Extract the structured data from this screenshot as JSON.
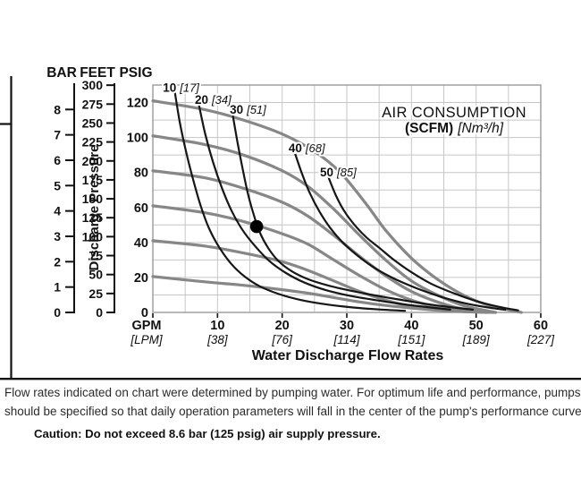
{
  "colors": {
    "text": "#111111",
    "grid": "#c6c6c6",
    "plot_border": "#9a9a9a",
    "water_curve": "#878787",
    "air_curve": "#161616",
    "operating_dot": "#000000",
    "figure_border": "#111111"
  },
  "figure": {
    "pressure_axis_header": {
      "bar": "BAR",
      "feet": "FEET",
      "psig": "PSIG"
    },
    "pressure_axis_label": "Discharge Pressure",
    "x_axis": {
      "unit_primary": "GPM",
      "unit_secondary": "[LPM]",
      "title": "Water Discharge Flow Rates"
    },
    "legend": {
      "line1": "AIR CONSUMPTION",
      "line2_bold": "(SCFM)",
      "line2_italic": "[Nm³/h]"
    }
  },
  "chart_data": {
    "type": "line",
    "title": "AIR CONSUMPTION (SCFM) [Nm³/h]",
    "xlabel": "Water Discharge Flow Rates",
    "x_units": [
      "GPM",
      "LPM"
    ],
    "y_units": [
      "BAR",
      "FEET",
      "PSIG"
    ],
    "xlim_gpm": [
      0,
      60
    ],
    "ylim_psig": [
      0,
      130
    ],
    "grid": {
      "x_step_gpm": 5,
      "y_step_psig": 10,
      "grid_on": true
    },
    "x_ticks": [
      {
        "gpm": "10",
        "lpm": "[38]"
      },
      {
        "gpm": "20",
        "lpm": "[76]"
      },
      {
        "gpm": "30",
        "lpm": "[114]"
      },
      {
        "gpm": "40",
        "lpm": "[151]"
      },
      {
        "gpm": "50",
        "lpm": "[189]"
      },
      {
        "gpm": "60",
        "lpm": "[227]"
      }
    ],
    "bar_ticks": [
      "0",
      "1",
      "2",
      "3",
      "4",
      "5",
      "6",
      "7",
      "8"
    ],
    "feet_ticks": [
      "0",
      "25",
      "50",
      "75",
      "100",
      "125",
      "150",
      "175",
      "200",
      "225",
      "250",
      "275",
      "300"
    ],
    "psig_ticks": [
      "0",
      "20",
      "40",
      "60",
      "80",
      "100",
      "120"
    ],
    "water_pressure_curves": [
      {
        "start_psig": 120,
        "points_gpm_psig": [
          [
            0,
            121
          ],
          [
            8,
            116
          ],
          [
            14,
            110
          ],
          [
            20,
            102
          ],
          [
            25,
            92
          ],
          [
            29,
            80
          ],
          [
            33,
            62
          ],
          [
            36,
            47
          ],
          [
            40,
            31
          ],
          [
            44,
            19
          ],
          [
            48,
            10
          ],
          [
            52,
            4
          ],
          [
            57,
            0
          ]
        ]
      },
      {
        "start_psig": 100,
        "points_gpm_psig": [
          [
            0,
            101
          ],
          [
            8,
            96
          ],
          [
            14,
            90
          ],
          [
            20,
            81
          ],
          [
            24,
            72
          ],
          [
            28,
            59
          ],
          [
            32,
            44
          ],
          [
            36,
            30
          ],
          [
            40,
            18
          ],
          [
            44,
            10
          ],
          [
            48,
            4
          ],
          [
            53,
            0
          ]
        ]
      },
      {
        "start_psig": 80,
        "points_gpm_psig": [
          [
            0,
            81
          ],
          [
            8,
            77
          ],
          [
            14,
            71
          ],
          [
            20,
            63
          ],
          [
            24,
            55
          ],
          [
            28,
            44
          ],
          [
            32,
            32
          ],
          [
            36,
            21
          ],
          [
            40,
            12
          ],
          [
            44,
            6
          ],
          [
            48,
            2
          ],
          [
            52.5,
            0
          ]
        ]
      },
      {
        "start_psig": 60,
        "points_gpm_psig": [
          [
            0,
            61
          ],
          [
            8,
            57
          ],
          [
            14,
            52
          ],
          [
            20,
            45
          ],
          [
            24,
            39
          ],
          [
            28,
            30
          ],
          [
            32,
            21
          ],
          [
            36,
            13
          ],
          [
            40,
            7
          ],
          [
            44,
            3
          ],
          [
            48,
            1
          ],
          [
            52,
            0
          ]
        ]
      },
      {
        "start_psig": 40,
        "points_gpm_psig": [
          [
            0,
            41
          ],
          [
            8,
            38
          ],
          [
            14,
            34
          ],
          [
            20,
            29
          ],
          [
            24,
            24
          ],
          [
            28,
            18
          ],
          [
            32,
            12
          ],
          [
            36,
            7
          ],
          [
            40,
            3.5
          ],
          [
            44,
            1.5
          ],
          [
            48,
            0.5
          ],
          [
            51.5,
            0
          ]
        ]
      },
      {
        "start_psig": 20,
        "points_gpm_psig": [
          [
            0,
            20.5
          ],
          [
            8,
            17.5
          ],
          [
            14,
            15.5
          ],
          [
            20,
            13
          ],
          [
            24,
            11
          ],
          [
            28,
            8.5
          ],
          [
            32,
            6
          ],
          [
            36,
            4
          ],
          [
            40,
            2.5
          ],
          [
            44,
            1.3
          ],
          [
            48,
            0.5
          ],
          [
            53,
            0
          ]
        ]
      }
    ],
    "air_consumption_curves": [
      {
        "scfm": "10",
        "nm3h": "[17]",
        "label_pos_gpm_psig": [
          1.55,
          128.3
        ],
        "points_gpm_psig": [
          [
            3.4,
            126
          ],
          [
            4.2,
            108
          ],
          [
            5.2,
            91
          ],
          [
            6.3,
            75
          ],
          [
            7.4,
            61
          ],
          [
            8.7,
            48
          ],
          [
            10.3,
            37
          ],
          [
            12.2,
            27.5
          ],
          [
            14.2,
            20.5
          ],
          [
            16.5,
            15
          ],
          [
            19.5,
            10.5
          ],
          [
            23,
            7
          ],
          [
            27,
            4.5
          ],
          [
            31,
            2.8
          ],
          [
            35,
            1.7
          ],
          [
            39,
            0.9
          ]
        ]
      },
      {
        "scfm": "20",
        "nm3h": "[34]",
        "label_pos_gpm_psig": [
          6.5,
          121.3
        ],
        "points_gpm_psig": [
          [
            7.1,
            119
          ],
          [
            8.1,
            102
          ],
          [
            9.3,
            86
          ],
          [
            10.7,
            71
          ],
          [
            12.2,
            58
          ],
          [
            13.9,
            47
          ],
          [
            15.8,
            38
          ],
          [
            18,
            29.5
          ],
          [
            20.6,
            22.5
          ],
          [
            23.5,
            17
          ],
          [
            27,
            12.5
          ],
          [
            30.5,
            9.5
          ],
          [
            34.5,
            7
          ],
          [
            38.5,
            4.8
          ],
          [
            42.5,
            3
          ],
          [
            46,
            1.6
          ]
        ]
      },
      {
        "scfm": "30",
        "nm3h": "[51]",
        "label_pos_gpm_psig": [
          11.9,
          115.7
        ],
        "points_gpm_psig": [
          [
            12.4,
            112
          ],
          [
            13.1,
            97
          ],
          [
            13.9,
            82
          ],
          [
            14.7,
            68
          ],
          [
            15.6,
            56
          ],
          [
            16.5,
            46
          ],
          [
            17.8,
            37
          ],
          [
            19.4,
            29.5
          ],
          [
            21.5,
            23.5
          ],
          [
            24,
            19
          ],
          [
            27,
            15.5
          ],
          [
            30.5,
            12.5
          ],
          [
            34,
            10
          ],
          [
            38,
            7.4
          ],
          [
            42,
            5
          ],
          [
            46,
            3
          ],
          [
            49.5,
            1.6
          ]
        ]
      },
      {
        "scfm": "40",
        "nm3h": "[68]",
        "label_pos_gpm_psig": [
          21.0,
          93.7
        ],
        "points_gpm_psig": [
          [
            21.8,
            93
          ],
          [
            23,
            80
          ],
          [
            24.3,
            68
          ],
          [
            25.8,
            57.5
          ],
          [
            27.5,
            48
          ],
          [
            29.5,
            39.5
          ],
          [
            32,
            31.5
          ],
          [
            34.5,
            25
          ],
          [
            37.5,
            19
          ],
          [
            41,
            13.5
          ],
          [
            44.5,
            9
          ],
          [
            48,
            5.5
          ],
          [
            51.5,
            3
          ],
          [
            54.5,
            1.5
          ]
        ]
      },
      {
        "scfm": "50",
        "nm3h": "[85]",
        "label_pos_gpm_psig": [
          25.85,
          79.8
        ],
        "points_gpm_psig": [
          [
            27.2,
            77
          ],
          [
            28.3,
            67
          ],
          [
            29.6,
            58
          ],
          [
            31.2,
            50
          ],
          [
            33,
            43
          ],
          [
            35,
            37
          ],
          [
            37.3,
            30
          ],
          [
            40,
            23
          ],
          [
            43,
            16.5
          ],
          [
            46.5,
            11
          ],
          [
            50,
            6.5
          ],
          [
            53.5,
            3.2
          ],
          [
            56.5,
            1.2
          ]
        ]
      }
    ],
    "operating_point_gpm_psig": [
      16.05,
      49.1
    ]
  },
  "notes": {
    "line1": "Flow rates indicated on chart were determined by pumping water. For optimum life and performance, pumps",
    "line2": "should be specified so that daily operation parameters will fall in the center of the pump's performance curve.",
    "caution": "Caution: Do not exceed 8.6 bar (125 psig) air supply pressure."
  }
}
